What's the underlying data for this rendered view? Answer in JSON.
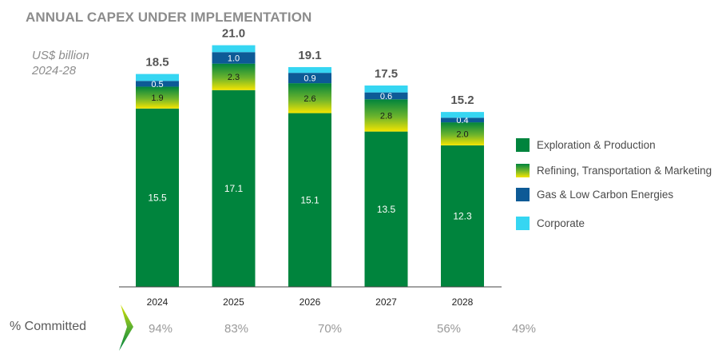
{
  "title": "ANNUAL CAPEX UNDER IMPLEMENTATION",
  "subtitle": [
    "US$ billion",
    "2024-28"
  ],
  "colors": {
    "ep": "#00843d",
    "refining_top": "#00843d",
    "refining_bottom": "#f5e500",
    "gas": "#0d5a96",
    "corporate": "#36d6f2",
    "total_label": "#555555",
    "segment_label": "#ffffff",
    "refining_label": "#1a1a1a"
  },
  "chart_data": {
    "type": "bar",
    "stacked": true,
    "title": "ANNUAL CAPEX UNDER IMPLEMENTATION",
    "ylabel": "US$ billion",
    "categories": [
      "2024",
      "2025",
      "2026",
      "2027",
      "2028"
    ],
    "series": [
      {
        "name": "Exploration & Production",
        "key": "ep",
        "values": [
          15.5,
          17.1,
          15.1,
          13.5,
          12.3
        ],
        "labels": [
          "15.5",
          "17.1",
          "15.1",
          "13.5",
          "12.3"
        ]
      },
      {
        "name": "Refining, Transportation & Marketing",
        "key": "refining",
        "values": [
          1.9,
          2.3,
          2.6,
          2.8,
          2.0
        ],
        "labels": [
          "1.9",
          "2.3",
          "2.6",
          "2.8",
          "2.0"
        ]
      },
      {
        "name": "Gas & Low Carbon Energies",
        "key": "gas",
        "values": [
          0.5,
          1.0,
          0.9,
          0.6,
          0.4
        ],
        "labels": [
          "0.5",
          "1.0",
          "0.9",
          "0.6",
          "0.4"
        ]
      },
      {
        "name": "Corporate",
        "key": "corporate",
        "values": [
          0.6,
          0.6,
          0.5,
          0.6,
          0.5
        ],
        "labels": [
          "",
          "",
          "",
          "",
          ""
        ]
      }
    ],
    "totals": [
      "18.5",
      "21.0",
      "19.1",
      "17.5",
      "15.2"
    ],
    "ylim": [
      0,
      22
    ],
    "legend_position": "right"
  },
  "legend": [
    {
      "label": "Exploration & Production",
      "key": "ep"
    },
    {
      "label": "Refining, Transportation & Marketing",
      "key": "refining"
    },
    {
      "label": "Gas & Low Carbon Energies",
      "key": "gas"
    },
    {
      "label": "Corporate",
      "key": "corporate"
    }
  ],
  "committed": {
    "label": "% Committed",
    "values": [
      "94%",
      "83%",
      "70%",
      "56%",
      "49%"
    ]
  }
}
